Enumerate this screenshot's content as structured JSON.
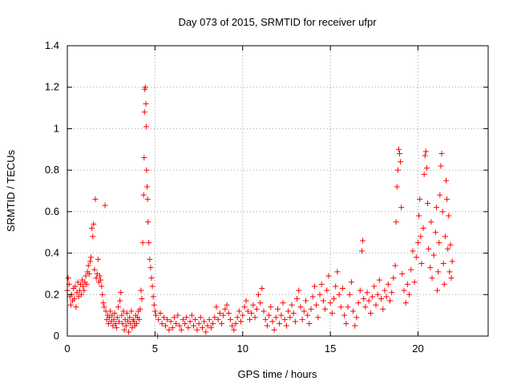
{
  "chart_data": {
    "type": "scatter",
    "title": "Day 073 of 2015, SRMTID for receiver ufpr",
    "xlabel": "GPS time / hours",
    "ylabel": "SRMTID / TECUs",
    "xlim": [
      0,
      24
    ],
    "ylim": [
      0,
      1.4
    ],
    "xticks": [
      0,
      5,
      10,
      15,
      20
    ],
    "yticks": [
      0,
      0.2,
      0.4,
      0.6,
      0.8,
      1,
      1.2,
      1.4
    ],
    "ytick_labels": [
      "0",
      "0.2",
      "0.4",
      "0.6",
      "0.8",
      "1",
      "1.2",
      "1.4"
    ],
    "marker": "+",
    "color": "#ff0000",
    "series": [
      {
        "name": "SRMTID",
        "points": [
          [
            0.0,
            0.22
          ],
          [
            0.05,
            0.28
          ],
          [
            0.1,
            0.25
          ],
          [
            0.15,
            0.19
          ],
          [
            0.2,
            0.15
          ],
          [
            0.25,
            0.2
          ],
          [
            0.3,
            0.17
          ],
          [
            0.35,
            0.23
          ],
          [
            0.4,
            0.18
          ],
          [
            0.45,
            0.24
          ],
          [
            0.5,
            0.14
          ],
          [
            0.55,
            0.21
          ],
          [
            0.6,
            0.26
          ],
          [
            0.65,
            0.19
          ],
          [
            0.7,
            0.22
          ],
          [
            0.75,
            0.25
          ],
          [
            0.8,
            0.2
          ],
          [
            0.85,
            0.27
          ],
          [
            0.9,
            0.24
          ],
          [
            0.95,
            0.22
          ],
          [
            1.0,
            0.26
          ],
          [
            1.05,
            0.29
          ],
          [
            1.1,
            0.25
          ],
          [
            1.15,
            0.31
          ],
          [
            1.2,
            0.34
          ],
          [
            1.25,
            0.3
          ],
          [
            1.3,
            0.36
          ],
          [
            1.35,
            0.38
          ],
          [
            1.4,
            0.52
          ],
          [
            1.45,
            0.48
          ],
          [
            1.5,
            0.54
          ],
          [
            1.55,
            0.32
          ],
          [
            1.6,
            0.66
          ],
          [
            1.65,
            0.28
          ],
          [
            1.7,
            0.3
          ],
          [
            1.75,
            0.37
          ],
          [
            1.8,
            0.26
          ],
          [
            1.85,
            0.29
          ],
          [
            1.9,
            0.27
          ],
          [
            1.95,
            0.24
          ],
          [
            2.0,
            0.2
          ],
          [
            2.05,
            0.16
          ],
          [
            2.1,
            0.14
          ],
          [
            2.15,
            0.63
          ],
          [
            2.2,
            0.12
          ],
          [
            2.25,
            0.08
          ],
          [
            2.3,
            0.1
          ],
          [
            2.35,
            0.06
          ],
          [
            2.4,
            0.09
          ],
          [
            2.45,
            0.12
          ],
          [
            2.5,
            0.07
          ],
          [
            2.55,
            0.1
          ],
          [
            2.6,
            0.05
          ],
          [
            2.65,
            0.08
          ],
          [
            2.7,
            0.11
          ],
          [
            2.75,
            0.06
          ],
          [
            2.8,
            0.04
          ],
          [
            2.85,
            0.09
          ],
          [
            2.9,
            0.14
          ],
          [
            2.95,
            0.07
          ],
          [
            3.0,
            0.17
          ],
          [
            3.05,
            0.21
          ],
          [
            3.1,
            0.1
          ],
          [
            3.15,
            0.06
          ],
          [
            3.2,
            0.12
          ],
          [
            3.25,
            0.03
          ],
          [
            3.3,
            0.08
          ],
          [
            3.35,
            0.05
          ],
          [
            3.4,
            0.11
          ],
          [
            3.45,
            0.07
          ],
          [
            3.5,
            0.02
          ],
          [
            3.55,
            0.09
          ],
          [
            3.6,
            0.06
          ],
          [
            3.65,
            0.12
          ],
          [
            3.7,
            0.04
          ],
          [
            3.75,
            0.08
          ],
          [
            3.8,
            0.07
          ],
          [
            3.85,
            0.05
          ],
          [
            3.9,
            0.1
          ],
          [
            3.95,
            0.06
          ],
          [
            4.0,
            0.09
          ],
          [
            4.05,
            0.12
          ],
          [
            4.1,
            0.08
          ],
          [
            4.15,
            0.13
          ],
          [
            4.2,
            0.22
          ],
          [
            4.25,
            0.18
          ],
          [
            4.3,
            0.45
          ],
          [
            4.35,
            0.68
          ],
          [
            4.38,
            0.86
          ],
          [
            4.4,
            1.08
          ],
          [
            4.42,
            1.19
          ],
          [
            4.45,
            1.2
          ],
          [
            4.48,
            1.12
          ],
          [
            4.5,
            1.01
          ],
          [
            4.52,
            0.8
          ],
          [
            4.55,
            0.72
          ],
          [
            4.58,
            0.66
          ],
          [
            4.6,
            0.55
          ],
          [
            4.65,
            0.45
          ],
          [
            4.7,
            0.37
          ],
          [
            4.75,
            0.33
          ],
          [
            4.8,
            0.28
          ],
          [
            4.85,
            0.24
          ],
          [
            4.9,
            0.19
          ],
          [
            4.95,
            0.15
          ],
          [
            5.0,
            0.12
          ],
          [
            5.05,
            0.1
          ],
          [
            5.15,
            0.0
          ],
          [
            5.2,
            0.08
          ],
          [
            5.3,
            0.11
          ],
          [
            5.4,
            0.06
          ],
          [
            5.5,
            0.09
          ],
          [
            5.6,
            0.05
          ],
          [
            5.7,
            0.08
          ],
          [
            5.8,
            0.03
          ],
          [
            5.9,
            0.07
          ],
          [
            6.0,
            0.04
          ],
          [
            6.1,
            0.09
          ],
          [
            6.2,
            0.06
          ],
          [
            6.3,
            0.1
          ],
          [
            6.4,
            0.05
          ],
          [
            6.5,
            0.03
          ],
          [
            6.6,
            0.08
          ],
          [
            6.7,
            0.06
          ],
          [
            6.8,
            0.09
          ],
          [
            6.9,
            0.04
          ],
          [
            7.0,
            0.07
          ],
          [
            7.1,
            0.1
          ],
          [
            7.2,
            0.05
          ],
          [
            7.3,
            0.08
          ],
          [
            7.4,
            0.03
          ],
          [
            7.5,
            0.06
          ],
          [
            7.6,
            0.09
          ],
          [
            7.7,
            0.04
          ],
          [
            7.8,
            0.07
          ],
          [
            7.9,
            0.02
          ],
          [
            8.0,
            0.05
          ],
          [
            8.1,
            0.08
          ],
          [
            8.2,
            0.04
          ],
          [
            8.3,
            0.06
          ],
          [
            8.4,
            0.09
          ],
          [
            8.5,
            0.14
          ],
          [
            8.6,
            0.08
          ],
          [
            8.7,
            0.11
          ],
          [
            8.8,
            0.06
          ],
          [
            8.9,
            0.1
          ],
          [
            9.0,
            0.13
          ],
          [
            9.1,
            0.15
          ],
          [
            9.2,
            0.11
          ],
          [
            9.3,
            0.08
          ],
          [
            9.4,
            0.05
          ],
          [
            9.5,
            0.03
          ],
          [
            9.6,
            0.06
          ],
          [
            9.7,
            0.09
          ],
          [
            9.8,
            0.12
          ],
          [
            9.9,
            0.07
          ],
          [
            10.0,
            0.1
          ],
          [
            10.1,
            0.14
          ],
          [
            10.2,
            0.17
          ],
          [
            10.3,
            0.12
          ],
          [
            10.4,
            0.08
          ],
          [
            10.5,
            0.11
          ],
          [
            10.6,
            0.15
          ],
          [
            10.7,
            0.09
          ],
          [
            10.8,
            0.13
          ],
          [
            10.9,
            0.2
          ],
          [
            11.0,
            0.16
          ],
          [
            11.1,
            0.23
          ],
          [
            11.2,
            0.12
          ],
          [
            11.3,
            0.08
          ],
          [
            11.4,
            0.05
          ],
          [
            11.5,
            0.1
          ],
          [
            11.6,
            0.14
          ],
          [
            11.7,
            0.07
          ],
          [
            11.8,
            0.03
          ],
          [
            11.9,
            0.09
          ],
          [
            12.0,
            0.13
          ],
          [
            12.1,
            0.06
          ],
          [
            12.2,
            0.1
          ],
          [
            12.3,
            0.16
          ],
          [
            12.4,
            0.08
          ],
          [
            12.5,
            0.05
          ],
          [
            12.6,
            0.12
          ],
          [
            12.7,
            0.09
          ],
          [
            12.8,
            0.15
          ],
          [
            12.9,
            0.11
          ],
          [
            13.0,
            0.07
          ],
          [
            13.1,
            0.18
          ],
          [
            13.2,
            0.22
          ],
          [
            13.3,
            0.14
          ],
          [
            13.4,
            0.08
          ],
          [
            13.5,
            0.12
          ],
          [
            13.6,
            0.17
          ],
          [
            13.7,
            0.1
          ],
          [
            13.8,
            0.06
          ],
          [
            13.9,
            0.13
          ],
          [
            14.0,
            0.19
          ],
          [
            14.1,
            0.24
          ],
          [
            14.2,
            0.15
          ],
          [
            14.3,
            0.09
          ],
          [
            14.4,
            0.2
          ],
          [
            14.5,
            0.25
          ],
          [
            14.6,
            0.17
          ],
          [
            14.7,
            0.13
          ],
          [
            14.8,
            0.22
          ],
          [
            14.9,
            0.29
          ],
          [
            15.0,
            0.16
          ],
          [
            15.1,
            0.11
          ],
          [
            15.2,
            0.18
          ],
          [
            15.3,
            0.24
          ],
          [
            15.4,
            0.31
          ],
          [
            15.5,
            0.2
          ],
          [
            15.6,
            0.14
          ],
          [
            15.7,
            0.23
          ],
          [
            15.8,
            0.1
          ],
          [
            15.9,
            0.06
          ],
          [
            16.0,
            0.14
          ],
          [
            16.1,
            0.2
          ],
          [
            16.2,
            0.26
          ],
          [
            16.3,
            0.12
          ],
          [
            16.4,
            0.05
          ],
          [
            16.5,
            0.09
          ],
          [
            16.6,
            0.16
          ],
          [
            16.7,
            0.22
          ],
          [
            16.8,
            0.41
          ],
          [
            16.85,
            0.46
          ],
          [
            16.9,
            0.18
          ],
          [
            17.0,
            0.14
          ],
          [
            17.1,
            0.21
          ],
          [
            17.2,
            0.17
          ],
          [
            17.3,
            0.11
          ],
          [
            17.4,
            0.19
          ],
          [
            17.5,
            0.24
          ],
          [
            17.6,
            0.15
          ],
          [
            17.7,
            0.2
          ],
          [
            17.8,
            0.27
          ],
          [
            17.9,
            0.18
          ],
          [
            18.0,
            0.13
          ],
          [
            18.1,
            0.22
          ],
          [
            18.2,
            0.19
          ],
          [
            18.3,
            0.25
          ],
          [
            18.4,
            0.17
          ],
          [
            18.5,
            0.21
          ],
          [
            18.6,
            0.28
          ],
          [
            18.7,
            0.34
          ],
          [
            18.75,
            0.55
          ],
          [
            18.8,
            0.72
          ],
          [
            18.85,
            0.8
          ],
          [
            18.9,
            0.9
          ],
          [
            18.95,
            0.88
          ],
          [
            19.0,
            0.84
          ],
          [
            19.05,
            0.62
          ],
          [
            19.1,
            0.3
          ],
          [
            19.2,
            0.22
          ],
          [
            19.3,
            0.16
          ],
          [
            19.4,
            0.25
          ],
          [
            19.5,
            0.2
          ],
          [
            19.6,
            0.32
          ],
          [
            19.7,
            0.41
          ],
          [
            19.8,
            0.26
          ],
          [
            19.9,
            0.38
          ],
          [
            20.0,
            0.45
          ],
          [
            20.05,
            0.58
          ],
          [
            20.1,
            0.66
          ],
          [
            20.15,
            0.48
          ],
          [
            20.2,
            0.35
          ],
          [
            20.3,
            0.52
          ],
          [
            20.35,
            0.78
          ],
          [
            20.4,
            0.87
          ],
          [
            20.45,
            0.89
          ],
          [
            20.5,
            0.81
          ],
          [
            20.55,
            0.64
          ],
          [
            20.6,
            0.42
          ],
          [
            20.7,
            0.33
          ],
          [
            20.75,
            0.55
          ],
          [
            20.8,
            0.28
          ],
          [
            20.9,
            0.39
          ],
          [
            21.0,
            0.5
          ],
          [
            21.05,
            0.62
          ],
          [
            21.1,
            0.22
          ],
          [
            21.15,
            0.31
          ],
          [
            21.2,
            0.45
          ],
          [
            21.25,
            0.68
          ],
          [
            21.3,
            0.82
          ],
          [
            21.35,
            0.88
          ],
          [
            21.4,
            0.6
          ],
          [
            21.45,
            0.35
          ],
          [
            21.5,
            0.25
          ],
          [
            21.55,
            0.48
          ],
          [
            21.6,
            0.75
          ],
          [
            21.65,
            0.66
          ],
          [
            21.7,
            0.42
          ],
          [
            21.75,
            0.58
          ],
          [
            21.8,
            0.31
          ],
          [
            21.85,
            0.44
          ],
          [
            21.9,
            0.28
          ],
          [
            21.95,
            0.36
          ]
        ]
      }
    ]
  }
}
